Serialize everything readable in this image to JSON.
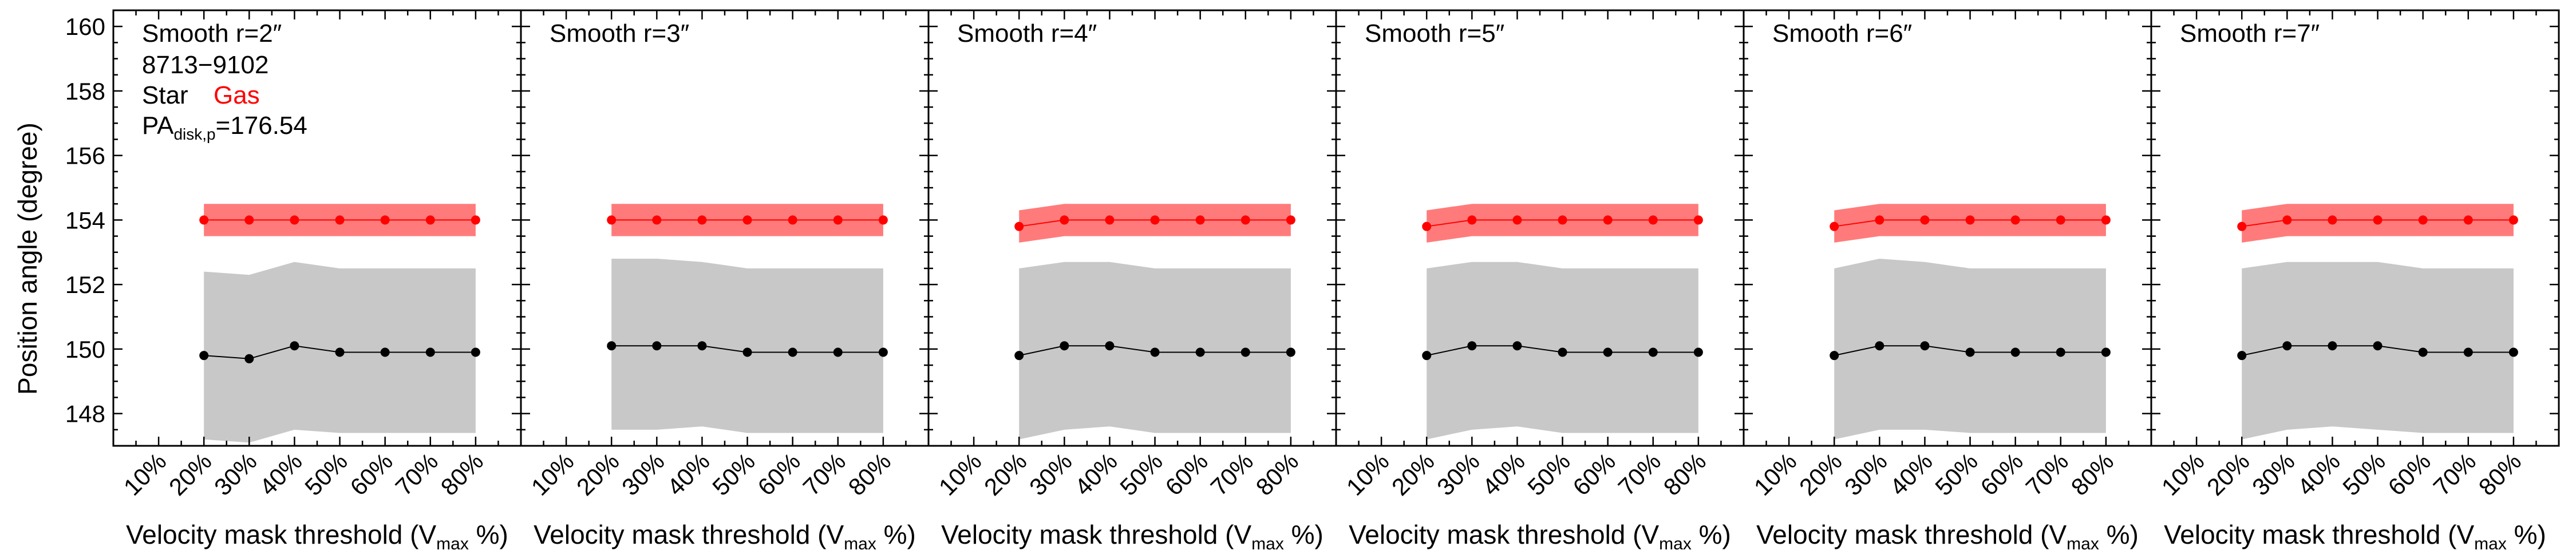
{
  "figure": {
    "ylabel": "Position angle (degree)",
    "xlabel_main": "Velocity mask threshold (V",
    "xlabel_sub": "max",
    "xlabel_end": " %)",
    "annotation": {
      "id_text": "8713−9102",
      "star_label": "Star",
      "gas_label": "Gas",
      "pa_main": "PA",
      "pa_sub": "disk,p",
      "pa_value": "=176.54"
    }
  },
  "colors": {
    "gas": "#ff0000",
    "gas_band": "#ff7b7b",
    "star": "#000000",
    "star_band": "#c8c8c8",
    "axis": "#000000"
  },
  "chart_data": {
    "type": "line",
    "xlim": [
      0,
      90
    ],
    "ylim": [
      147,
      160.5
    ],
    "x_ticks": [
      10,
      20,
      30,
      40,
      50,
      60,
      70,
      80
    ],
    "x_tick_labels": [
      "10%",
      "20%",
      "30%",
      "40%",
      "50%",
      "60%",
      "70%",
      "80%"
    ],
    "y_ticks": [
      148,
      150,
      152,
      154,
      156,
      158,
      160
    ],
    "y_tick_labels": [
      "148",
      "150",
      "152",
      "154",
      "156",
      "158",
      "160"
    ],
    "x": [
      20,
      30,
      40,
      50,
      60,
      70,
      80
    ],
    "panels": [
      {
        "title": "Smooth r=2″",
        "series": [
          {
            "name": "Star",
            "values": [
              149.8,
              149.7,
              150.1,
              149.9,
              149.9,
              149.9,
              149.9
            ],
            "lower": [
              147.2,
              147.1,
              147.5,
              147.4,
              147.4,
              147.4,
              147.4
            ],
            "upper": [
              152.4,
              152.3,
              152.7,
              152.5,
              152.5,
              152.5,
              152.5
            ]
          },
          {
            "name": "Gas",
            "values": [
              154.0,
              154.0,
              154.0,
              154.0,
              154.0,
              154.0,
              154.0
            ],
            "lower": [
              153.5,
              153.5,
              153.5,
              153.5,
              153.5,
              153.5,
              153.5
            ],
            "upper": [
              154.5,
              154.5,
              154.5,
              154.5,
              154.5,
              154.5,
              154.5
            ]
          }
        ]
      },
      {
        "title": "Smooth r=3″",
        "series": [
          {
            "name": "Star",
            "values": [
              150.1,
              150.1,
              150.1,
              149.9,
              149.9,
              149.9,
              149.9
            ],
            "lower": [
              147.5,
              147.5,
              147.6,
              147.4,
              147.4,
              147.4,
              147.4
            ],
            "upper": [
              152.8,
              152.8,
              152.7,
              152.5,
              152.5,
              152.5,
              152.5
            ]
          },
          {
            "name": "Gas",
            "values": [
              154.0,
              154.0,
              154.0,
              154.0,
              154.0,
              154.0,
              154.0
            ],
            "lower": [
              153.5,
              153.5,
              153.5,
              153.5,
              153.5,
              153.5,
              153.5
            ],
            "upper": [
              154.5,
              154.5,
              154.5,
              154.5,
              154.5,
              154.5,
              154.5
            ]
          }
        ]
      },
      {
        "title": "Smooth r=4″",
        "series": [
          {
            "name": "Star",
            "values": [
              149.8,
              150.1,
              150.1,
              149.9,
              149.9,
              149.9,
              149.9
            ],
            "lower": [
              147.2,
              147.5,
              147.6,
              147.4,
              147.4,
              147.4,
              147.4
            ],
            "upper": [
              152.5,
              152.7,
              152.7,
              152.5,
              152.5,
              152.5,
              152.5
            ]
          },
          {
            "name": "Gas",
            "values": [
              153.8,
              154.0,
              154.0,
              154.0,
              154.0,
              154.0,
              154.0
            ],
            "lower": [
              153.3,
              153.5,
              153.5,
              153.5,
              153.5,
              153.5,
              153.5
            ],
            "upper": [
              154.3,
              154.5,
              154.5,
              154.5,
              154.5,
              154.5,
              154.5
            ]
          }
        ]
      },
      {
        "title": "Smooth r=5″",
        "series": [
          {
            "name": "Star",
            "values": [
              149.8,
              150.1,
              150.1,
              149.9,
              149.9,
              149.9,
              149.9
            ],
            "lower": [
              147.2,
              147.5,
              147.6,
              147.4,
              147.4,
              147.4,
              147.4
            ],
            "upper": [
              152.5,
              152.7,
              152.7,
              152.5,
              152.5,
              152.5,
              152.5
            ]
          },
          {
            "name": "Gas",
            "values": [
              153.8,
              154.0,
              154.0,
              154.0,
              154.0,
              154.0,
              154.0
            ],
            "lower": [
              153.3,
              153.5,
              153.5,
              153.5,
              153.5,
              153.5,
              153.5
            ],
            "upper": [
              154.3,
              154.5,
              154.5,
              154.5,
              154.5,
              154.5,
              154.5
            ]
          }
        ]
      },
      {
        "title": "Smooth r=6″",
        "series": [
          {
            "name": "Star",
            "values": [
              149.8,
              150.1,
              150.1,
              149.9,
              149.9,
              149.9,
              149.9
            ],
            "lower": [
              147.2,
              147.5,
              147.5,
              147.4,
              147.4,
              147.4,
              147.4
            ],
            "upper": [
              152.5,
              152.8,
              152.7,
              152.5,
              152.5,
              152.5,
              152.5
            ]
          },
          {
            "name": "Gas",
            "values": [
              153.8,
              154.0,
              154.0,
              154.0,
              154.0,
              154.0,
              154.0
            ],
            "lower": [
              153.3,
              153.5,
              153.5,
              153.5,
              153.5,
              153.5,
              153.5
            ],
            "upper": [
              154.3,
              154.5,
              154.5,
              154.5,
              154.5,
              154.5,
              154.5
            ]
          }
        ]
      },
      {
        "title": "Smooth r=7″",
        "series": [
          {
            "name": "Star",
            "values": [
              149.8,
              150.1,
              150.1,
              150.1,
              149.9,
              149.9,
              149.9
            ],
            "lower": [
              147.2,
              147.5,
              147.6,
              147.5,
              147.4,
              147.4,
              147.4
            ],
            "upper": [
              152.5,
              152.7,
              152.7,
              152.7,
              152.5,
              152.5,
              152.5
            ]
          },
          {
            "name": "Gas",
            "values": [
              153.8,
              154.0,
              154.0,
              154.0,
              154.0,
              154.0,
              154.0
            ],
            "lower": [
              153.3,
              153.5,
              153.5,
              153.5,
              153.5,
              153.5,
              153.5
            ],
            "upper": [
              154.3,
              154.5,
              154.5,
              154.5,
              154.5,
              154.5,
              154.5
            ]
          }
        ]
      }
    ]
  }
}
